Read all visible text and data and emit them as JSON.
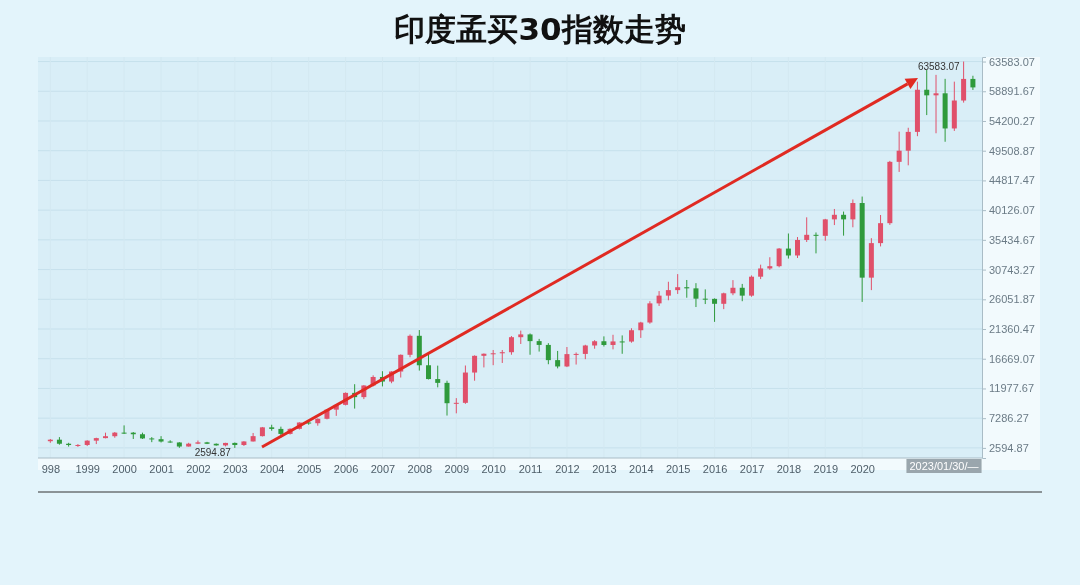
{
  "chart_data": {
    "type": "candlestick",
    "title": "印度孟买30指数走势",
    "x": [
      "1998-01",
      "1998-04",
      "1998-07",
      "1998-10",
      "1999-01",
      "1999-04",
      "1999-07",
      "1999-10",
      "2000-01",
      "2000-04",
      "2000-07",
      "2000-10",
      "2001-01",
      "2001-04",
      "2001-07",
      "2001-10",
      "2002-01",
      "2002-04",
      "2002-07",
      "2002-10",
      "2003-01",
      "2003-04",
      "2003-07",
      "2003-10",
      "2004-01",
      "2004-04",
      "2004-07",
      "2004-10",
      "2005-01",
      "2005-04",
      "2005-07",
      "2005-10",
      "2006-01",
      "2006-04",
      "2006-07",
      "2006-10",
      "2007-01",
      "2007-04",
      "2007-07",
      "2007-10",
      "2008-01",
      "2008-04",
      "2008-07",
      "2008-10",
      "2009-01",
      "2009-04",
      "2009-07",
      "2009-10",
      "2010-01",
      "2010-04",
      "2010-07",
      "2010-10",
      "2011-01",
      "2011-04",
      "2011-07",
      "2011-10",
      "2012-01",
      "2012-04",
      "2012-07",
      "2012-10",
      "2013-01",
      "2013-04",
      "2013-07",
      "2013-10",
      "2014-01",
      "2014-04",
      "2014-07",
      "2014-10",
      "2015-01",
      "2015-04",
      "2015-07",
      "2015-10",
      "2016-01",
      "2016-04",
      "2016-07",
      "2016-10",
      "2017-01",
      "2017-04",
      "2017-07",
      "2017-10",
      "2018-01",
      "2018-04",
      "2018-07",
      "2018-10",
      "2019-01",
      "2019-04",
      "2019-07",
      "2019-10",
      "2020-01",
      "2020-04",
      "2020-07",
      "2020-10",
      "2021-01",
      "2021-04",
      "2021-07",
      "2021-10",
      "2022-01",
      "2022-04",
      "2022-07",
      "2022-10",
      "2023-01"
    ],
    "ohlc": [
      [
        3650,
        4000,
        3400,
        3890
      ],
      [
        3890,
        4300,
        3100,
        3250
      ],
      [
        3250,
        3400,
        2800,
        3050
      ],
      [
        3050,
        3200,
        2750,
        3055
      ],
      [
        3055,
        3800,
        2900,
        3740
      ],
      [
        3740,
        4200,
        3200,
        4140
      ],
      [
        4140,
        5000,
        4100,
        4440
      ],
      [
        4440,
        5100,
        4200,
        5005
      ],
      [
        5005,
        6150,
        4800,
        5000
      ],
      [
        5000,
        5100,
        4000,
        4750
      ],
      [
        4750,
        5000,
        4000,
        4090
      ],
      [
        4090,
        4300,
        3500,
        3970
      ],
      [
        3970,
        4450,
        3450,
        3600
      ],
      [
        3600,
        3800,
        3400,
        3450
      ],
      [
        3450,
        3500,
        2600,
        2810
      ],
      [
        2810,
        3400,
        2800,
        3260
      ],
      [
        3260,
        3760,
        3200,
        3470
      ],
      [
        3470,
        3550,
        3200,
        3245
      ],
      [
        3245,
        3300,
        2950,
        2990
      ],
      [
        2990,
        3400,
        2830,
        3380
      ],
      [
        3380,
        3450,
        2594.87,
        3050
      ],
      [
        3050,
        3650,
        2900,
        3610
      ],
      [
        3610,
        4950,
        3600,
        4450
      ],
      [
        4450,
        5900,
        4400,
        5840
      ],
      [
        5840,
        6250,
        5300,
        5590
      ],
      [
        5590,
        5950,
        4230,
        4800
      ],
      [
        4800,
        5700,
        4700,
        5600
      ],
      [
        5600,
        6650,
        5500,
        6600
      ],
      [
        6600,
        6950,
        6250,
        6490
      ],
      [
        6490,
        7250,
        6100,
        7190
      ],
      [
        7190,
        8700,
        7100,
        8630
      ],
      [
        8630,
        9400,
        7650,
        9390
      ],
      [
        9390,
        11350,
        9300,
        11280
      ],
      [
        11280,
        12650,
        8800,
        10610
      ],
      [
        10610,
        12500,
        10300,
        12450
      ],
      [
        12450,
        14050,
        12300,
        13790
      ],
      [
        13790,
        14700,
        12300,
        13070
      ],
      [
        13070,
        14700,
        12800,
        14650
      ],
      [
        14650,
        17350,
        13700,
        17290
      ],
      [
        17290,
        20500,
        16900,
        20290
      ],
      [
        20290,
        21200,
        14800,
        15640
      ],
      [
        15640,
        17700,
        13400,
        13460
      ],
      [
        13460,
        15580,
        12150,
        12860
      ],
      [
        12860,
        13200,
        7700,
        9650
      ],
      [
        9650,
        10450,
        8050,
        9710
      ],
      [
        9710,
        15600,
        9550,
        14490
      ],
      [
        14490,
        17200,
        13200,
        17130
      ],
      [
        17130,
        17500,
        15300,
        17460
      ],
      [
        17460,
        18050,
        15650,
        17530
      ],
      [
        17530,
        18050,
        16000,
        17700
      ],
      [
        17700,
        20250,
        17300,
        20070
      ],
      [
        20070,
        21110,
        19000,
        20510
      ],
      [
        20510,
        20660,
        17300,
        19450
      ],
      [
        19450,
        19800,
        17800,
        18850
      ],
      [
        18850,
        19130,
        15800,
        16450
      ],
      [
        16450,
        17900,
        15150,
        15450
      ],
      [
        15450,
        18520,
        15350,
        17400
      ],
      [
        17400,
        17660,
        15750,
        17430
      ],
      [
        17430,
        18870,
        16600,
        18760
      ],
      [
        18760,
        19600,
        18250,
        19430
      ],
      [
        19430,
        20200,
        18600,
        18840
      ],
      [
        18840,
        20450,
        18150,
        19400
      ],
      [
        19400,
        20350,
        17450,
        19380
      ],
      [
        19380,
        21480,
        19200,
        21170
      ],
      [
        21170,
        22500,
        19960,
        22390
      ],
      [
        22390,
        25750,
        22200,
        25410
      ],
      [
        25410,
        27350,
        25000,
        26630
      ],
      [
        26630,
        28820,
        25900,
        27500
      ],
      [
        27500,
        30030,
        26900,
        27960
      ],
      [
        27960,
        29100,
        26300,
        27780
      ],
      [
        27780,
        28600,
        24830,
        26150
      ],
      [
        26150,
        27620,
        25300,
        26120
      ],
      [
        26120,
        26200,
        22490,
        25340
      ],
      [
        25340,
        27100,
        24500,
        27000
      ],
      [
        27000,
        29080,
        26700,
        27870
      ],
      [
        27870,
        28480,
        25750,
        26630
      ],
      [
        26630,
        29820,
        26450,
        29620
      ],
      [
        29620,
        31520,
        29240,
        30920
      ],
      [
        30920,
        32690,
        30700,
        31280
      ],
      [
        31280,
        34140,
        31100,
        34060
      ],
      [
        34060,
        36440,
        32480,
        32970
      ],
      [
        32970,
        35880,
        32570,
        35420
      ],
      [
        35420,
        38990,
        35100,
        36230
      ],
      [
        36230,
        36600,
        33300,
        36070
      ],
      [
        36070,
        38750,
        35300,
        38670
      ],
      [
        38670,
        40310,
        37770,
        39390
      ],
      [
        39390,
        39900,
        36100,
        38670
      ],
      [
        38670,
        41810,
        37420,
        41250
      ],
      [
        41250,
        42270,
        25640,
        29470
      ],
      [
        29470,
        35700,
        27500,
        34920
      ],
      [
        34920,
        39360,
        34400,
        38070
      ],
      [
        38070,
        47900,
        37800,
        47750
      ],
      [
        47750,
        52520,
        46160,
        49510
      ],
      [
        49510,
        53130,
        47200,
        52480
      ],
      [
        52480,
        60410,
        51800,
        59130
      ],
      [
        59130,
        62250,
        55130,
        58250
      ],
      [
        58250,
        61480,
        52260,
        58570
      ],
      [
        58570,
        60850,
        50920,
        53020
      ],
      [
        53020,
        60410,
        52630,
        57430
      ],
      [
        57430,
        63583.07,
        57100,
        60840
      ],
      [
        60840,
        61340,
        59100,
        59500
      ]
    ],
    "colors": [
      "#e0506a",
      "#2f9a3c",
      "#2f9a3c",
      "#e0506a",
      "#e0506a",
      "#e0506a",
      "#e0506a",
      "#e0506a",
      "#2f9a3c",
      "#2f9a3c",
      "#2f9a3c",
      "#2f9a3c",
      "#2f9a3c",
      "#2f9a3c",
      "#2f9a3c",
      "#e0506a",
      "#e0506a",
      "#2f9a3c",
      "#2f9a3c",
      "#e0506a",
      "#2f9a3c",
      "#e0506a",
      "#e0506a",
      "#e0506a",
      "#2f9a3c",
      "#2f9a3c",
      "#e0506a",
      "#e0506a",
      "#2f9a3c",
      "#e0506a",
      "#e0506a",
      "#e0506a",
      "#e0506a",
      "#2f9a3c",
      "#e0506a",
      "#e0506a",
      "#2f9a3c",
      "#e0506a",
      "#e0506a",
      "#e0506a",
      "#2f9a3c",
      "#2f9a3c",
      "#2f9a3c",
      "#2f9a3c",
      "#e0506a",
      "#e0506a",
      "#e0506a",
      "#e0506a",
      "#e0506a",
      "#e0506a",
      "#e0506a",
      "#e0506a",
      "#2f9a3c",
      "#2f9a3c",
      "#2f9a3c",
      "#2f9a3c",
      "#e0506a",
      "#e0506a",
      "#e0506a",
      "#e0506a",
      "#2f9a3c",
      "#e0506a",
      "#2f9a3c",
      "#e0506a",
      "#e0506a",
      "#e0506a",
      "#e0506a",
      "#e0506a",
      "#e0506a",
      "#2f9a3c",
      "#2f9a3c",
      "#2f9a3c",
      "#2f9a3c",
      "#e0506a",
      "#e0506a",
      "#2f9a3c",
      "#e0506a",
      "#e0506a",
      "#e0506a",
      "#e0506a",
      "#2f9a3c",
      "#e0506a",
      "#e0506a",
      "#2f9a3c",
      "#e0506a",
      "#e0506a",
      "#2f9a3c",
      "#e0506a",
      "#2f9a3c",
      "#e0506a",
      "#e0506a",
      "#e0506a",
      "#e0506a",
      "#e0506a",
      "#e0506a",
      "#2f9a3c",
      "#e0506a",
      "#2f9a3c",
      "#e0506a",
      "#e0506a",
      "#2f9a3c"
    ],
    "xlim": [
      "1997-09",
      "2023-04"
    ],
    "xticks": [
      {
        "value": "1998-01",
        "label": "998"
      },
      {
        "value": "1999-01",
        "label": "1999"
      },
      {
        "value": "2000-01",
        "label": "2000"
      },
      {
        "value": "2001-01",
        "label": "2001"
      },
      {
        "value": "2002-01",
        "label": "2002"
      },
      {
        "value": "2003-01",
        "label": "2003"
      },
      {
        "value": "2004-01",
        "label": "2004"
      },
      {
        "value": "2005-01",
        "label": "2005"
      },
      {
        "value": "2006-01",
        "label": "2006"
      },
      {
        "value": "2007-01",
        "label": "2007"
      },
      {
        "value": "2008-01",
        "label": "2008"
      },
      {
        "value": "2009-01",
        "label": "2009"
      },
      {
        "value": "2010-01",
        "label": "2010"
      },
      {
        "value": "2011-01",
        "label": "2011"
      },
      {
        "value": "2012-01",
        "label": "2012"
      },
      {
        "value": "2013-01",
        "label": "2013"
      },
      {
        "value": "2014-01",
        "label": "2014"
      },
      {
        "value": "2015-01",
        "label": "2015"
      },
      {
        "value": "2016-01",
        "label": "2016"
      },
      {
        "value": "2017-01",
        "label": "2017"
      },
      {
        "value": "2018-01",
        "label": "2018"
      },
      {
        "value": "2019-01",
        "label": "2019"
      },
      {
        "value": "2020-01",
        "label": "2020"
      }
    ],
    "ylim": [
      1000,
      64300
    ],
    "yticks": [
      2594.87,
      7286.27,
      11977.67,
      16669.07,
      21360.47,
      26051.87,
      30743.27,
      35434.67,
      40126.07,
      44817.47,
      49508.87,
      54200.27,
      58891.67,
      63583.07
    ],
    "grid": true,
    "annotations": [
      {
        "text": "63583.07",
        "x": "2022-10",
        "y": 63583.07
      },
      {
        "text": "2594.87",
        "x": "2003-01",
        "y": 2594.87
      },
      "2023/01/30/—"
    ]
  }
}
